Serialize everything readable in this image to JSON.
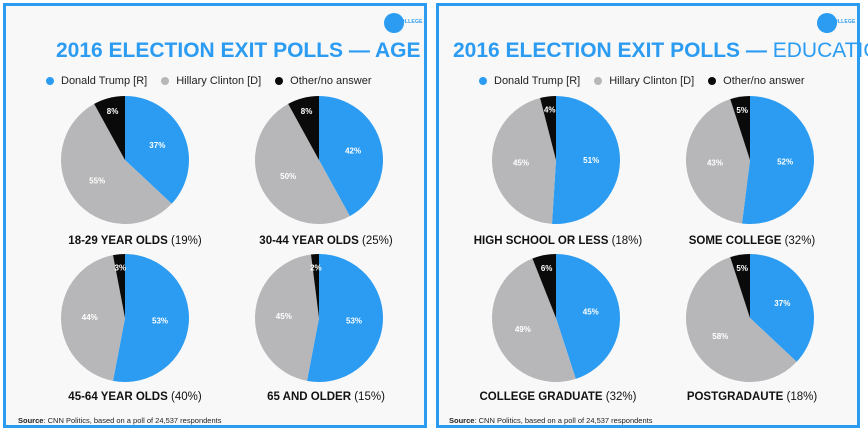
{
  "colors": {
    "trump": "#2b9cf2",
    "clinton": "#b7b7b9",
    "other": "#0a0a0a",
    "accent": "#2b9cf2"
  },
  "legend": [
    {
      "label": "Donald Trump  [R]",
      "color": "#2b9cf2"
    },
    {
      "label": "Hillary Clinton  [D]",
      "color": "#b7b7b9"
    },
    {
      "label": "Other/no answer",
      "color": "#0a0a0a"
    }
  ],
  "panels": [
    {
      "logo": "COLLEGE",
      "title_main": "2016 ELECTION EXIT POLLS — ",
      "title_suffix": "AGE",
      "source_bold": "Source",
      "source_text": ": CNN Politics, based on a poll of 24,537 respondents"
    },
    {
      "logo": "COLLEGE",
      "title_main": "2016 ELECTION EXIT POLLS — ",
      "title_suffix": "EDUCATION",
      "source_bold": "Source",
      "source_text": ": CNN Politics, based on a poll of 24,537 respondents"
    }
  ],
  "chart_data": [
    {
      "type": "pie",
      "group": "AGE",
      "label": "18-29 YEAR OLDS",
      "share": "(19%)",
      "slices": [
        {
          "name": "Donald Trump  [R]",
          "value": 37
        },
        {
          "name": "Hillary Clinton  [D]",
          "value": 55
        },
        {
          "name": "Other/no answer",
          "value": 8
        }
      ]
    },
    {
      "type": "pie",
      "group": "AGE",
      "label": "30-44 YEAR OLDS",
      "share": "(25%)",
      "slices": [
        {
          "name": "Donald Trump  [R]",
          "value": 42
        },
        {
          "name": "Hillary Clinton  [D]",
          "value": 50
        },
        {
          "name": "Other/no answer",
          "value": 8
        }
      ]
    },
    {
      "type": "pie",
      "group": "AGE",
      "label": "45-64 YEAR OLDS",
      "share": "(40%)",
      "slices": [
        {
          "name": "Donald Trump  [R]",
          "value": 53
        },
        {
          "name": "Hillary Clinton  [D]",
          "value": 44
        },
        {
          "name": "Other/no answer",
          "value": 3
        }
      ]
    },
    {
      "type": "pie",
      "group": "AGE",
      "label": "65 AND OLDER",
      "share": "(15%)",
      "slices": [
        {
          "name": "Donald Trump  [R]",
          "value": 53
        },
        {
          "name": "Hillary Clinton  [D]",
          "value": 45
        },
        {
          "name": "Other/no answer",
          "value": 2
        }
      ]
    },
    {
      "type": "pie",
      "group": "EDUCATION",
      "label": "HIGH SCHOOL OR LESS",
      "share": "(18%)",
      "slices": [
        {
          "name": "Donald Trump  [R]",
          "value": 51
        },
        {
          "name": "Hillary Clinton  [D]",
          "value": 45
        },
        {
          "name": "Other/no answer",
          "value": 4
        }
      ]
    },
    {
      "type": "pie",
      "group": "EDUCATION",
      "label": "SOME COLLEGE",
      "share": "(32%)",
      "slices": [
        {
          "name": "Donald Trump  [R]",
          "value": 52
        },
        {
          "name": "Hillary Clinton  [D]",
          "value": 43
        },
        {
          "name": "Other/no answer",
          "value": 5
        }
      ]
    },
    {
      "type": "pie",
      "group": "EDUCATION",
      "label": "COLLEGE GRADUATE",
      "share": "(32%)",
      "slices": [
        {
          "name": "Donald Trump  [R]",
          "value": 45
        },
        {
          "name": "Hillary Clinton  [D]",
          "value": 49
        },
        {
          "name": "Other/no answer",
          "value": 6
        }
      ]
    },
    {
      "type": "pie",
      "group": "EDUCATION",
      "label": "POSTGRADAUTE",
      "share": "(18%)",
      "slices": [
        {
          "name": "Donald Trump  [R]",
          "value": 37
        },
        {
          "name": "Hillary Clinton  [D]",
          "value": 58
        },
        {
          "name": "Other/no answer",
          "value": 5
        }
      ]
    }
  ]
}
